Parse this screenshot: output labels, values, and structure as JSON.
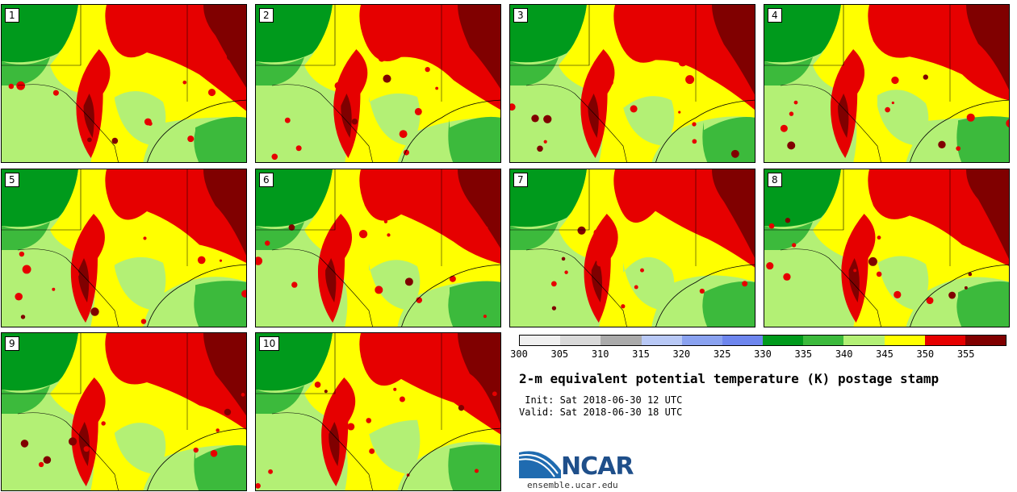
{
  "title": "2-m equivalent potential temperature (K) postage stamp",
  "init_label": " Init: Sat 2018-06-30 12 UTC",
  "valid_label": "Valid: Sat 2018-06-30 18 UTC",
  "logo_text": "NCAR",
  "site": "ensemble.ucar.edu",
  "members": [
    {
      "label": "1",
      "seed": 11
    },
    {
      "label": "2",
      "seed": 23
    },
    {
      "label": "3",
      "seed": 37
    },
    {
      "label": "4",
      "seed": 41
    },
    {
      "label": "5",
      "seed": 53
    },
    {
      "label": "6",
      "seed": 67
    },
    {
      "label": "7",
      "seed": 71
    },
    {
      "label": "8",
      "seed": 83
    },
    {
      "label": "9",
      "seed": 97
    },
    {
      "label": "10",
      "seed": 101
    }
  ],
  "colorbar": {
    "ticks": [
      "300",
      "305",
      "310",
      "315",
      "320",
      "325",
      "330",
      "335",
      "340",
      "345",
      "350",
      "355"
    ],
    "colors": [
      "#f0f0f0",
      "#d9d9d9",
      "#aaaaaa",
      "#b8c8f5",
      "#8aa2f0",
      "#6e86ee",
      "#009a1c",
      "#3cba3c",
      "#b3f075",
      "#ffff00",
      "#e60000",
      "#800000"
    ]
  },
  "palette": {
    "green": "#009a1c",
    "mid_green": "#3cba3c",
    "light_green": "#b3f075",
    "yellow": "#ffff00",
    "red": "#e60000",
    "dark_red": "#800000",
    "lake_blue": "#6e86ee",
    "border": "#000000"
  }
}
